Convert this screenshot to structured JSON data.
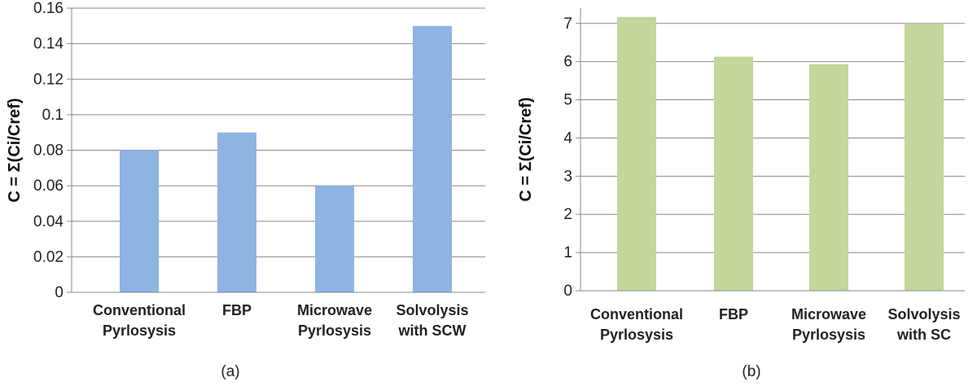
{
  "chart_data": [
    {
      "type": "bar",
      "panel_label": "(a)",
      "ylabel": "C = Σ(Ci/Cref)",
      "categories": [
        [
          "Conventional",
          "Pyrlosysis"
        ],
        [
          "FBP"
        ],
        [
          "Microwave",
          "Pyrlosysis"
        ],
        [
          "Solvolysis",
          "with SCW"
        ]
      ],
      "values": [
        0.08,
        0.09,
        0.06,
        0.15
      ],
      "ylim": [
        0,
        0.16
      ],
      "yticks": [
        0,
        0.02,
        0.04,
        0.06,
        0.08,
        0.1,
        0.12,
        0.14,
        0.16
      ],
      "ytick_labels": [
        "0",
        "0.02",
        "0.04",
        "0.06",
        "0.08",
        "0.1",
        "0.12",
        "0.14",
        "0.16"
      ],
      "bar_color": "#8EB4E3",
      "grid": true
    },
    {
      "type": "bar",
      "panel_label": "(b)",
      "ylabel": "C = Σ(Ci/Cref)",
      "categories": [
        [
          "Conventional",
          "Pyrlosysis"
        ],
        [
          "FBP"
        ],
        [
          "Microwave",
          "Pyrlosysis"
        ],
        [
          "Solvolysis",
          "with SC"
        ]
      ],
      "values": [
        7.17,
        6.13,
        5.93,
        7.0
      ],
      "ylim": [
        0,
        7.4
      ],
      "yticks": [
        0,
        1,
        2,
        3,
        4,
        5,
        6,
        7
      ],
      "ytick_labels": [
        "0",
        "1",
        "2",
        "3",
        "4",
        "5",
        "6",
        "7"
      ],
      "bar_color": "#C3D69B",
      "grid": true
    }
  ]
}
